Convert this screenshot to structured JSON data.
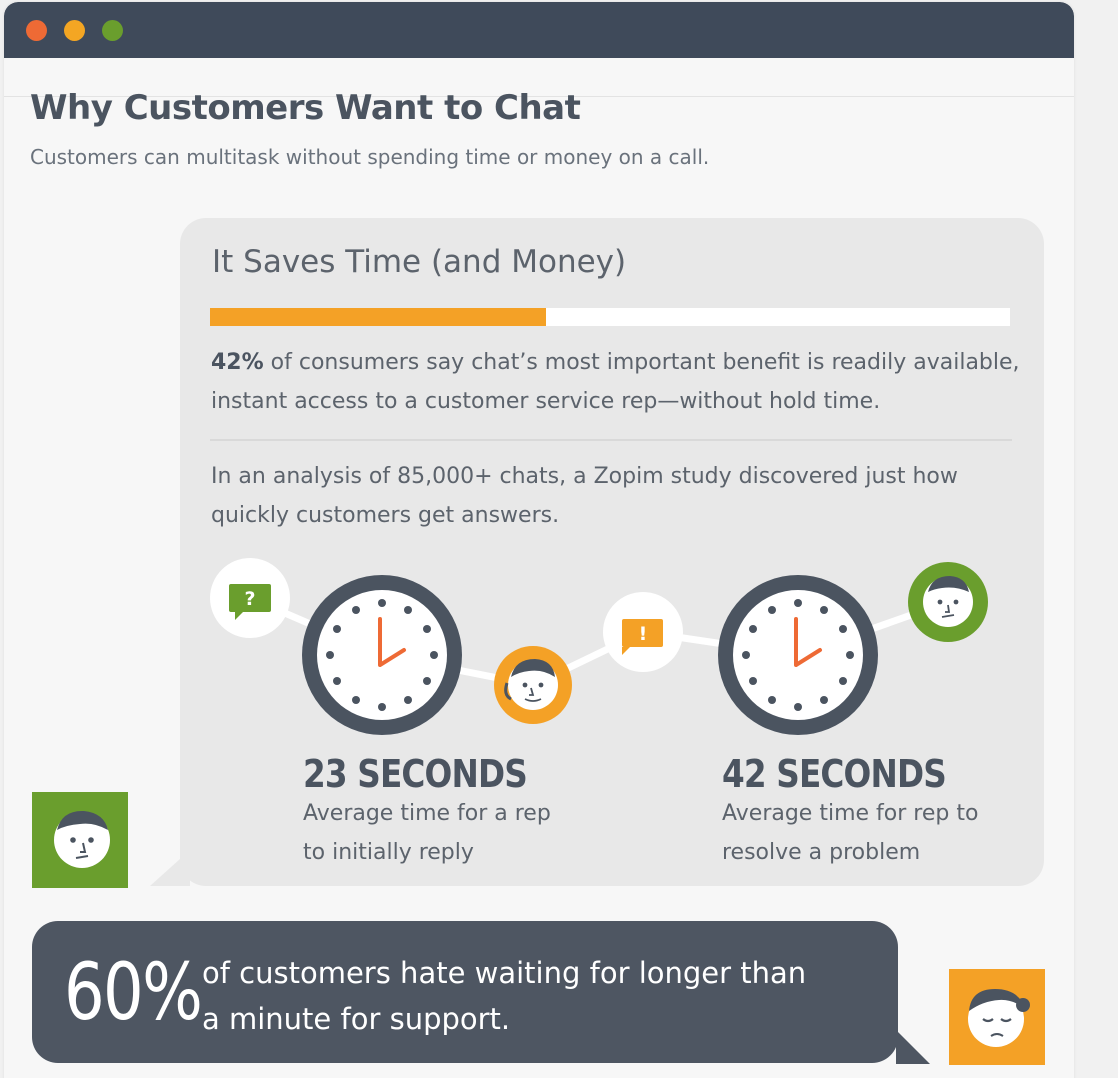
{
  "window": {
    "colors": {
      "titlebar": "#3f4a5a",
      "close": "#ee6a35",
      "minimize": "#f4a623",
      "maximize": "#6a9e2d"
    }
  },
  "header": {
    "title": "Why Customers Want to Chat",
    "subtitle": "Customers can multitask without spending time or money on a call."
  },
  "card": {
    "title": "It Saves Time (and Money)",
    "progress_fraction": 0.42,
    "progress_color": "#f4a126",
    "para1_bold": "42%",
    "para1_rest": " of consumers say chat’s most important benefit is readily available, instant access to a customer service rep—without hold time.",
    "para2": "In an analysis of 85,000+ chats, a Zopim study discovered just how quickly customers get answers.",
    "question_glyph": "?",
    "exclaim_glyph": "!",
    "stats": [
      {
        "value": "23 SECONDS",
        "desc": "Average time for a rep to initially reply"
      },
      {
        "value": "42 SECONDS",
        "desc": "Average time for rep to resolve a problem"
      }
    ]
  },
  "banner": {
    "percent": "60%",
    "text": "of customers hate waiting for longer than a minute for support."
  },
  "icons": [
    "question-bubble-icon",
    "exclaim-bubble-icon",
    "clock-icon",
    "rep-face-icon",
    "customer-face-icon"
  ]
}
